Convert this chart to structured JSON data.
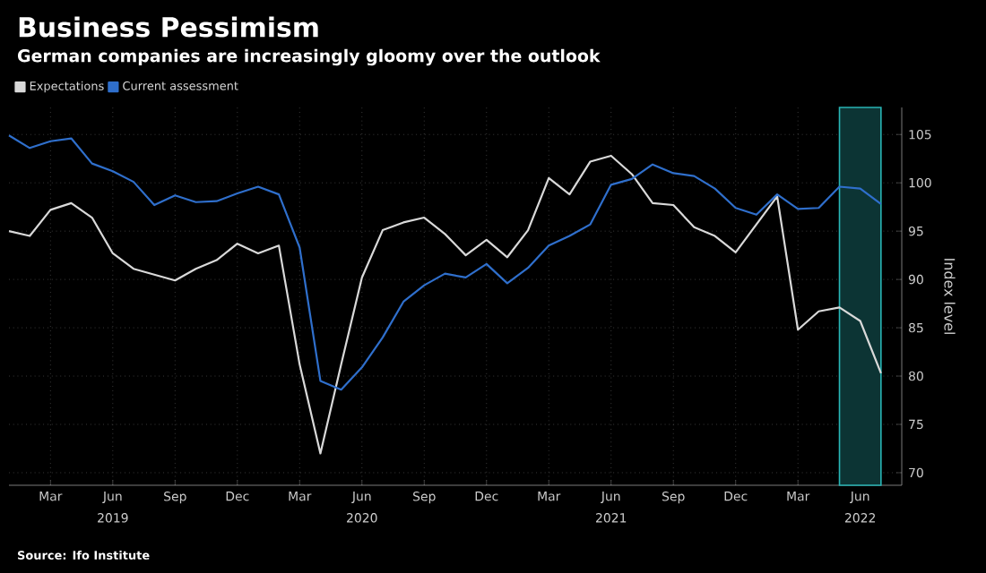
{
  "chart_data": {
    "type": "line",
    "title": "Business Pessimism",
    "subtitle": "German companies are increasingly gloomy over the outlook",
    "ylabel": "Index level",
    "annotations": [
      "Source: Ifo Institute",
      "2019",
      "2020",
      "2021",
      "2022"
    ],
    "x": [
      "2019-01",
      "2019-02",
      "2019-03",
      "2019-04",
      "2019-05",
      "2019-06",
      "2019-07",
      "2019-08",
      "2019-09",
      "2019-10",
      "2019-11",
      "2019-12",
      "2020-01",
      "2020-02",
      "2020-03",
      "2020-04",
      "2020-05",
      "2020-06",
      "2020-07",
      "2020-08",
      "2020-09",
      "2020-10",
      "2020-11",
      "2020-12",
      "2021-01",
      "2021-02",
      "2021-03",
      "2021-04",
      "2021-05",
      "2021-06",
      "2021-07",
      "2021-08",
      "2021-09",
      "2021-10",
      "2021-11",
      "2021-12",
      "2022-01",
      "2022-02",
      "2022-03",
      "2022-04",
      "2022-05",
      "2022-06",
      "2022-07"
    ],
    "series": [
      {
        "name": "Expectations",
        "color": "#d9d9d9",
        "values": [
          95.0,
          94.5,
          97.2,
          97.9,
          96.4,
          92.7,
          91.1,
          90.5,
          89.9,
          91.1,
          92.0,
          93.7,
          92.7,
          93.5,
          81.2,
          72.0,
          81.2,
          90.2,
          95.1,
          95.9,
          96.4,
          94.7,
          92.5,
          94.1,
          92.3,
          95.1,
          100.5,
          98.8,
          102.2,
          102.8,
          100.9,
          97.9,
          97.7,
          95.4,
          94.5,
          92.8,
          95.7,
          98.6,
          84.8,
          86.7,
          87.1,
          85.7,
          80.3
        ]
      },
      {
        "name": "Current assessment",
        "color": "#2f6fcc",
        "values": [
          104.9,
          103.6,
          104.3,
          104.6,
          102.0,
          101.2,
          100.1,
          97.7,
          98.7,
          98.0,
          98.1,
          98.9,
          99.6,
          98.8,
          93.3,
          79.5,
          78.6,
          80.9,
          84.0,
          87.7,
          89.4,
          90.6,
          90.2,
          91.6,
          89.6,
          91.2,
          93.5,
          94.5,
          95.7,
          99.8,
          100.4,
          101.9,
          101.0,
          100.7,
          99.4,
          97.4,
          96.7,
          98.8,
          97.3,
          97.4,
          99.6,
          99.4,
          97.8
        ]
      }
    ],
    "xlim": [
      "2019-01",
      "2022-08"
    ],
    "xticks": [
      {
        "value": "2019-03",
        "label": "Mar"
      },
      {
        "value": "2019-06",
        "label": "Jun"
      },
      {
        "value": "2019-09",
        "label": "Sep"
      },
      {
        "value": "2019-12",
        "label": "Dec"
      },
      {
        "value": "2020-03",
        "label": "Mar"
      },
      {
        "value": "2020-06",
        "label": "Jun"
      },
      {
        "value": "2020-09",
        "label": "Sep"
      },
      {
        "value": "2020-12",
        "label": "Dec"
      },
      {
        "value": "2021-03",
        "label": "Mar"
      },
      {
        "value": "2021-06",
        "label": "Jun"
      },
      {
        "value": "2021-09",
        "label": "Sep"
      },
      {
        "value": "2021-12",
        "label": "Dec"
      },
      {
        "value": "2022-03",
        "label": "Mar"
      },
      {
        "value": "2022-06",
        "label": "Jun"
      }
    ],
    "ylim": [
      68.7,
      107.8
    ],
    "yticks": [
      70,
      75,
      80,
      85,
      90,
      95,
      100,
      105
    ],
    "bands": [
      {
        "axis": "x",
        "from": "2022-05",
        "to": "2022-07",
        "color": "#0c3434"
      }
    ],
    "grid": true,
    "legend": "top left",
    "marker": "none",
    "line_style": "solid"
  }
}
